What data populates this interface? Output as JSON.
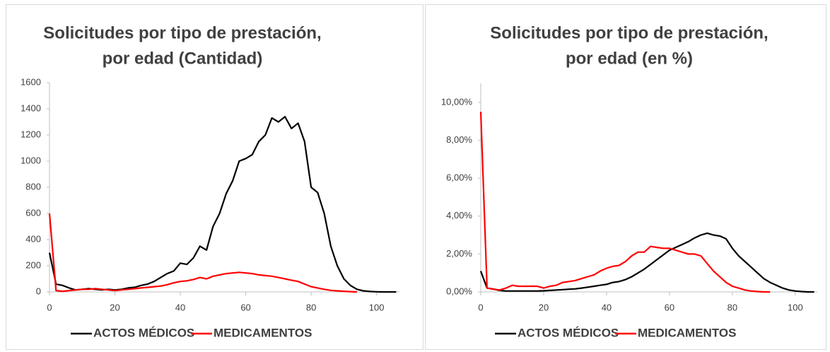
{
  "chart_data": [
    {
      "type": "line",
      "title": [
        "Solicitudes por tipo de prestación,",
        "por edad (Cantidad)"
      ],
      "x": [
        0,
        2,
        4,
        6,
        8,
        10,
        12,
        14,
        16,
        18,
        20,
        22,
        24,
        26,
        28,
        30,
        32,
        34,
        36,
        38,
        40,
        42,
        44,
        46,
        48,
        50,
        52,
        54,
        56,
        58,
        60,
        62,
        64,
        66,
        68,
        70,
        72,
        74,
        76,
        78,
        80,
        82,
        84,
        86,
        88,
        90,
        92,
        94,
        96,
        98,
        100,
        102,
        104,
        106
      ],
      "series": [
        {
          "name": "ACTOS MÉDICOS",
          "color": "#000000",
          "values": [
            300,
            60,
            50,
            30,
            15,
            20,
            25,
            20,
            15,
            20,
            15,
            20,
            30,
            35,
            50,
            60,
            80,
            110,
            140,
            160,
            220,
            210,
            260,
            350,
            320,
            500,
            600,
            750,
            850,
            1000,
            1020,
            1050,
            1150,
            1200,
            1330,
            1300,
            1340,
            1250,
            1290,
            1150,
            800,
            760,
            600,
            350,
            200,
            100,
            50,
            20,
            8,
            3,
            1,
            0,
            0,
            0
          ]
        },
        {
          "name": "MEDICAMENTOS",
          "color": "#ff0000",
          "values": [
            600,
            10,
            5,
            10,
            15,
            20,
            20,
            25,
            20,
            15,
            10,
            15,
            20,
            25,
            30,
            35,
            40,
            45,
            55,
            70,
            80,
            85,
            95,
            110,
            100,
            120,
            130,
            140,
            145,
            150,
            145,
            140,
            130,
            125,
            120,
            110,
            100,
            90,
            80,
            60,
            40,
            30,
            20,
            12,
            8,
            5,
            2,
            0,
            null,
            null,
            null,
            null,
            null,
            null
          ]
        }
      ],
      "xlim": [
        0,
        107
      ],
      "xticks": [
        0,
        20,
        40,
        60,
        80,
        100
      ],
      "ylim": [
        0,
        1600
      ],
      "yticks": [
        0,
        200,
        400,
        600,
        800,
        1000,
        1200,
        1400,
        1600
      ],
      "legend": "bottom"
    },
    {
      "type": "line",
      "title": [
        "Solicitudes por tipo de prestación,",
        "por edad (en %)"
      ],
      "x": [
        0,
        2,
        4,
        6,
        8,
        10,
        12,
        14,
        16,
        18,
        20,
        22,
        24,
        26,
        28,
        30,
        32,
        34,
        36,
        38,
        40,
        42,
        44,
        46,
        48,
        50,
        52,
        54,
        56,
        58,
        60,
        62,
        64,
        66,
        68,
        70,
        72,
        74,
        76,
        78,
        80,
        82,
        84,
        86,
        88,
        90,
        92,
        94,
        96,
        98,
        100,
        102,
        104,
        106
      ],
      "series": [
        {
          "name": "ACTOS MÉDICOS",
          "color": "#000000",
          "values": [
            1.1,
            0.2,
            0.15,
            0.08,
            0.05,
            0.05,
            0.05,
            0.05,
            0.05,
            0.05,
            0.06,
            0.08,
            0.1,
            0.12,
            0.14,
            0.16,
            0.2,
            0.25,
            0.3,
            0.35,
            0.4,
            0.5,
            0.55,
            0.65,
            0.8,
            1.0,
            1.2,
            1.45,
            1.7,
            1.95,
            2.2,
            2.35,
            2.5,
            2.65,
            2.85,
            3.0,
            3.1,
            3.0,
            2.95,
            2.8,
            2.3,
            1.9,
            1.6,
            1.3,
            1.0,
            0.7,
            0.5,
            0.35,
            0.2,
            0.1,
            0.05,
            0.02,
            0,
            0
          ]
        },
        {
          "name": "MEDICAMENTOS",
          "color": "#ff0000",
          "values": [
            9.5,
            0.2,
            0.15,
            0.1,
            0.2,
            0.35,
            0.3,
            0.3,
            0.3,
            0.3,
            0.2,
            0.3,
            0.35,
            0.5,
            0.55,
            0.6,
            0.7,
            0.8,
            0.9,
            1.1,
            1.25,
            1.35,
            1.4,
            1.6,
            1.9,
            2.1,
            2.1,
            2.4,
            2.35,
            2.3,
            2.3,
            2.2,
            2.1,
            2.0,
            2.0,
            1.9,
            1.5,
            1.1,
            0.8,
            0.5,
            0.3,
            0.2,
            0.1,
            0.05,
            0.02,
            0,
            0,
            null,
            null,
            null,
            null,
            null,
            null,
            null
          ]
        }
      ],
      "xlim": [
        0,
        107
      ],
      "xticks": [
        0,
        20,
        40,
        60,
        80,
        100
      ],
      "ylim": [
        0,
        11
      ],
      "yticks": [
        {
          "value": 0,
          "label": "0,00%"
        },
        {
          "value": 2,
          "label": "2,00%"
        },
        {
          "value": 4,
          "label": "4,00%"
        },
        {
          "value": 6,
          "label": "6,00%"
        },
        {
          "value": 8,
          "label": "8,00%"
        },
        {
          "value": 10,
          "label": "10,00%"
        }
      ],
      "legend": "bottom"
    }
  ]
}
